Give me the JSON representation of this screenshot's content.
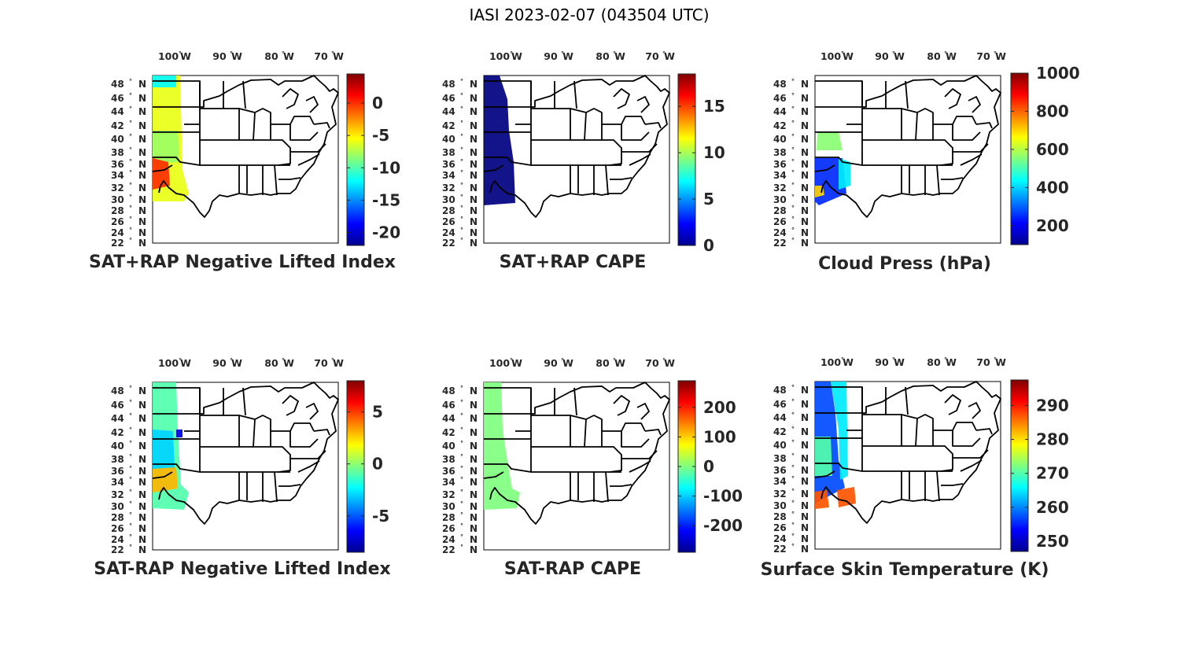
{
  "figure_title": "IASI 2023-02-07 (043504 UTC)",
  "lat_labels": [
    "48",
    "46",
    "44",
    "42",
    "40",
    "38",
    "36",
    "34",
    "32",
    "30",
    "28",
    "26",
    "24",
    "22"
  ],
  "lat_suffix": "N",
  "lon_labels": [
    "100",
    "90",
    "80",
    "70"
  ],
  "lon_suffix": "W",
  "colormap": "jet",
  "panels": [
    {
      "id": "sat-rap-lifted-index",
      "title": "SAT+RAP Negative Lifted Index",
      "colorbar": {
        "min": -22,
        "max": 4.5,
        "ticks": [
          "0",
          "-5",
          "-10",
          "-15",
          "-20"
        ],
        "tick_values": [
          0,
          -5,
          -10,
          -15,
          -20
        ]
      },
      "swath_dominant_values": [
        -6,
        -8,
        0,
        2,
        -12
      ]
    },
    {
      "id": "sat-rap-cape",
      "title": "SAT+RAP CAPE",
      "colorbar": {
        "min": 0,
        "max": 18.5,
        "ticks": [
          "15",
          "10",
          "5",
          "0"
        ],
        "tick_values": [
          15,
          10,
          5,
          0
        ]
      },
      "swath_dominant_values": [
        0
      ]
    },
    {
      "id": "cloud-press",
      "title": "Cloud Press (hPa)",
      "colorbar": {
        "min": 100,
        "max": 1000,
        "ticks": [
          "1000",
          "800",
          "600",
          "400",
          "200"
        ],
        "tick_values": [
          1000,
          800,
          600,
          400,
          200
        ]
      },
      "swath_dominant_values": [
        560,
        250,
        420,
        700
      ]
    },
    {
      "id": "sat-minus-rap-lifted-index",
      "title": "SAT-RAP Negative Lifted Index",
      "colorbar": {
        "min": -8.5,
        "max": 8,
        "ticks": [
          "5",
          "0",
          "-5"
        ],
        "tick_values": [
          5,
          0,
          -5
        ]
      },
      "swath_dominant_values": [
        -1,
        -3,
        3,
        -7
      ]
    },
    {
      "id": "sat-minus-rap-cape",
      "title": "SAT-RAP CAPE",
      "colorbar": {
        "min": -290,
        "max": 290,
        "ticks": [
          "200",
          "100",
          "0",
          "-100",
          "-200"
        ],
        "tick_values": [
          200,
          100,
          0,
          -100,
          -200
        ]
      },
      "swath_dominant_values": [
        0
      ]
    },
    {
      "id": "surface-skin-temperature",
      "title": "Surface Skin Temperature (K)",
      "colorbar": {
        "min": 247,
        "max": 297.5,
        "ticks": [
          "290",
          "280",
          "270",
          "260",
          "250"
        ],
        "tick_values": [
          290,
          280,
          270,
          260,
          250
        ]
      },
      "swath_dominant_values": [
        265,
        257,
        270,
        287
      ]
    }
  ]
}
